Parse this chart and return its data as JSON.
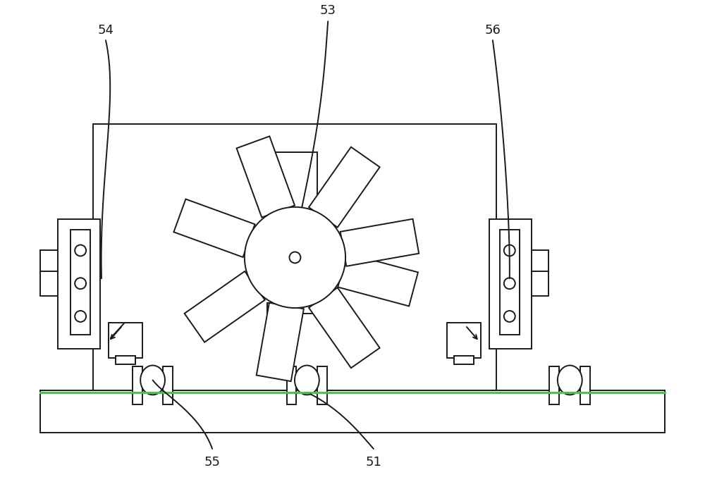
{
  "bg_color": "#ffffff",
  "line_color": "#1a1a1a",
  "lw": 1.4,
  "fig_w": 10.0,
  "fig_h": 6.94,
  "green_color": "#5cb85c",
  "label_fs": 13
}
